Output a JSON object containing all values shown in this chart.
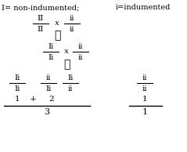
{
  "bg_color": "#ffffff",
  "text_color": "#000000",
  "figsize": [
    2.39,
    1.94
  ],
  "dpi": 100,
  "title_left": "I= non-indumented;",
  "title_right": "i=indumented",
  "row1": {
    "frac1_num": "II",
    "frac1_den": "II",
    "op": "x",
    "frac2_num": "ii",
    "frac2_den": "ii"
  },
  "row2": {
    "frac1_num": "Ii",
    "frac1_den": "Ii",
    "op": "x",
    "frac2_num": "ii",
    "frac2_den": "ii"
  },
  "row3_left": [
    {
      "num": "Ii",
      "den": "Ii",
      "count": "1"
    },
    {
      "num": "ii",
      "den": "Ii",
      "count": "2"
    },
    {
      "num": "Ii",
      "den": "ii",
      "count": ""
    }
  ],
  "row3_right": [
    {
      "num": "ii",
      "den": "ii",
      "count": "1"
    }
  ],
  "total_left": "3",
  "total_right": "1"
}
